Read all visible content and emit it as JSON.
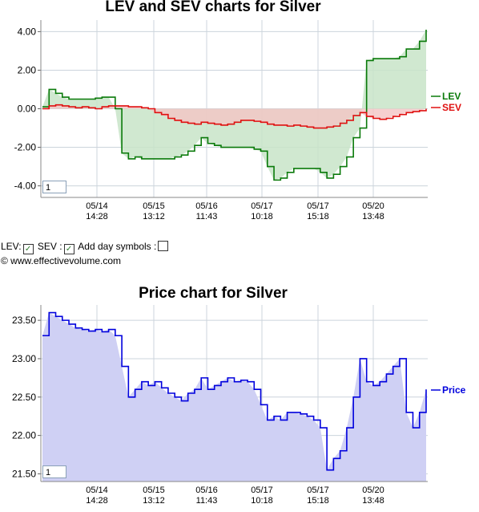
{
  "chart_data": [
    {
      "type": "line",
      "title": "LEV and SEV charts for Silver",
      "ylim": [
        -4.6,
        4.6
      ],
      "ytick_labels": [
        "4.00",
        "2.00",
        "0.00",
        "-2.00",
        "-4.00"
      ],
      "yticks": [
        4,
        2,
        0,
        -2,
        -4
      ],
      "xtick_labels": [
        [
          "05/14",
          "14:28"
        ],
        [
          "05/15",
          "13:12"
        ],
        [
          "05/16",
          "11:43"
        ],
        [
          "05/17",
          "10:18"
        ],
        [
          "05/17",
          "15:18"
        ],
        [
          "05/20",
          "13:48"
        ]
      ],
      "series": [
        {
          "name": "LEV",
          "color": "#0a7a0a",
          "values": [
            0.1,
            1.0,
            0.8,
            0.6,
            0.5,
            0.5,
            0.5,
            0.5,
            0.55,
            0.6,
            0.6,
            0.0,
            -2.3,
            -2.6,
            -2.5,
            -2.6,
            -2.6,
            -2.6,
            -2.6,
            -2.6,
            -2.5,
            -2.4,
            -2.2,
            -1.9,
            -1.5,
            -1.8,
            -1.9,
            -2.0,
            -2.0,
            -2.0,
            -2.0,
            -2.0,
            -2.1,
            -2.2,
            -3.0,
            -3.7,
            -3.6,
            -3.3,
            -3.1,
            -3.1,
            -3.1,
            -3.1,
            -3.3,
            -3.6,
            -3.4,
            -3.0,
            -2.5,
            -1.5,
            -1.0,
            2.5,
            2.6,
            2.6,
            2.6,
            2.6,
            2.7,
            3.1,
            3.1,
            3.5,
            4.1
          ]
        },
        {
          "name": "SEV",
          "color": "#e01010",
          "values": [
            0.0,
            0.15,
            0.2,
            0.15,
            0.1,
            0.05,
            0.1,
            0.05,
            0.0,
            0.1,
            0.15,
            0.15,
            0.15,
            0.1,
            0.1,
            0.05,
            0.0,
            -0.2,
            -0.3,
            -0.5,
            -0.6,
            -0.7,
            -0.75,
            -0.8,
            -0.7,
            -0.75,
            -0.8,
            -0.85,
            -0.8,
            -0.7,
            -0.6,
            -0.6,
            -0.65,
            -0.7,
            -0.8,
            -0.85,
            -0.85,
            -0.9,
            -0.85,
            -0.9,
            -0.95,
            -1.0,
            -1.0,
            -0.95,
            -0.9,
            -0.75,
            -0.6,
            -0.35,
            -0.2,
            -0.4,
            -0.5,
            -0.55,
            -0.5,
            -0.4,
            -0.3,
            -0.2,
            -0.15,
            -0.1,
            0.0
          ]
        }
      ],
      "fill_colors": {
        "lev": "#c8e4c8",
        "sev": "#f4c4c4"
      }
    },
    {
      "type": "area",
      "title": "Price chart for Silver",
      "ylim": [
        21.4,
        23.7
      ],
      "ytick_labels": [
        "23.50",
        "23.00",
        "22.50",
        "22.00",
        "21.50"
      ],
      "yticks": [
        23.5,
        23.0,
        22.5,
        22.0,
        21.5
      ],
      "xtick_labels": [
        [
          "05/14",
          "14:28"
        ],
        [
          "05/15",
          "13:12"
        ],
        [
          "05/16",
          "11:43"
        ],
        [
          "05/17",
          "10:18"
        ],
        [
          "05/17",
          "15:18"
        ],
        [
          "05/20",
          "13:48"
        ]
      ],
      "series": [
        {
          "name": "Price",
          "color": "#0000dd",
          "values": [
            23.3,
            23.6,
            23.55,
            23.5,
            23.45,
            23.4,
            23.38,
            23.36,
            23.38,
            23.35,
            23.38,
            23.3,
            22.9,
            22.5,
            22.6,
            22.7,
            22.65,
            22.7,
            22.62,
            22.55,
            22.5,
            22.45,
            22.55,
            22.6,
            22.75,
            22.6,
            22.65,
            22.7,
            22.75,
            22.7,
            22.72,
            22.7,
            22.6,
            22.4,
            22.2,
            22.25,
            22.2,
            22.3,
            22.3,
            22.28,
            22.25,
            22.2,
            22.1,
            21.55,
            21.7,
            21.8,
            22.1,
            22.5,
            23.0,
            22.7,
            22.65,
            22.7,
            22.8,
            22.9,
            23.0,
            22.3,
            22.1,
            22.3,
            22.6
          ]
        }
      ],
      "fill_color": "#cfd0f4"
    }
  ],
  "chart1": {
    "legend_lev": "LEV",
    "legend_sev": "SEV",
    "zoom_value": "1"
  },
  "chart2": {
    "legend_price": "Price",
    "zoom_value": "1"
  },
  "controls": {
    "lev_label": "LEV:",
    "sev_label": "SEV :",
    "day_symbols_label": "Add day symbols :",
    "copyright": "© www.effectivevolume.com"
  }
}
